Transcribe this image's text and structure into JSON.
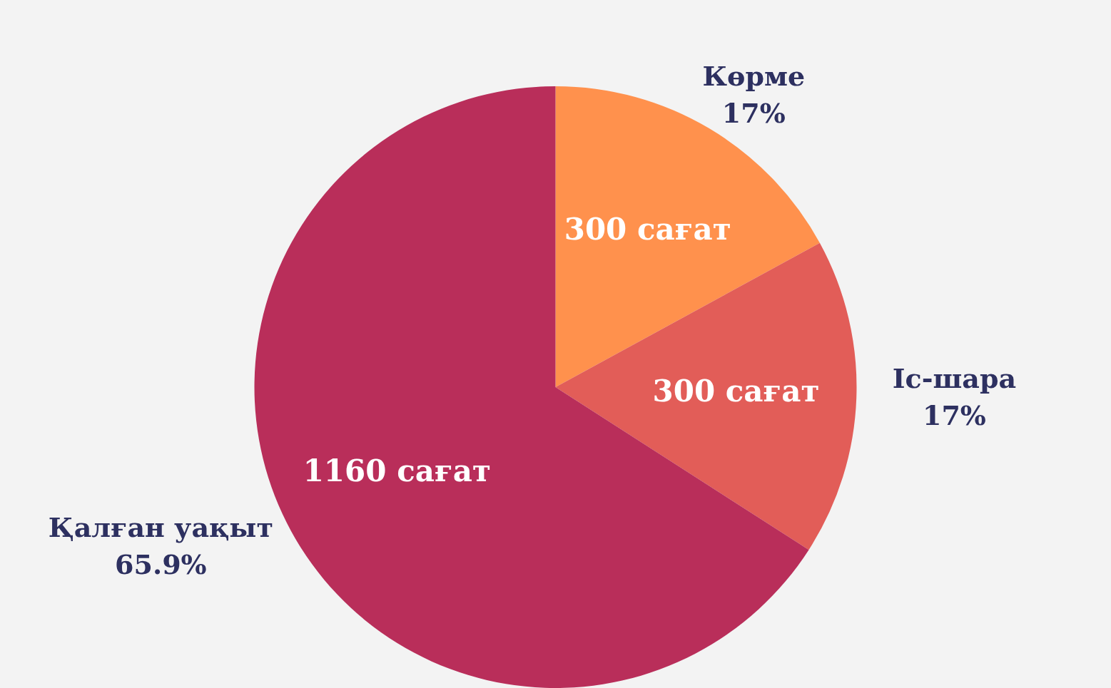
{
  "chart_data": {
    "type": "pie",
    "categories": [
      "Көрме",
      "Іс-шара",
      "Қалған уақыт"
    ],
    "values": [
      300,
      300,
      1160
    ],
    "colors": [
      "#ff914d",
      "#e25d58",
      "#b92e5a"
    ],
    "value_labels": [
      "300 сағат",
      "300 сағат",
      "1160 сағат"
    ],
    "annotations": [
      "17%",
      "17%",
      "65.9%"
    ]
  }
}
